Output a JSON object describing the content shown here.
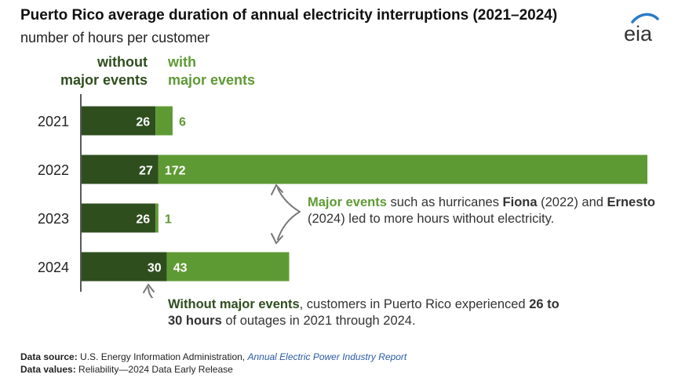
{
  "title": "Puerto Rico average duration of annual electricity interruptions (2021–2024)",
  "subtitle": "number of hours per customer",
  "logo_text": "eia",
  "legend": {
    "without_line1": "without",
    "without_line2": "major events",
    "with_line1": "with",
    "with_line2": "major events"
  },
  "colors": {
    "without": "#2f4e1e",
    "with": "#5e9a34",
    "axis": "#222222"
  },
  "chart_data": {
    "type": "bar",
    "orientation": "horizontal",
    "stacked": true,
    "categories": [
      "2021",
      "2022",
      "2023",
      "2024"
    ],
    "series": [
      {
        "name": "without major events",
        "values": [
          26,
          27,
          26,
          30
        ]
      },
      {
        "name": "with major events",
        "values": [
          6,
          172,
          1,
          43
        ]
      }
    ],
    "title": "Puerto Rico average duration of annual electricity interruptions (2021–2024)",
    "ylabel": "number of hours per customer",
    "xlim": [
      0,
      199
    ],
    "grid": false,
    "legend": "top"
  },
  "annotations": {
    "major": {
      "p1": "Major events",
      "p2": " such as hurricanes ",
      "p3": "Fiona",
      "p4": " (2022) and ",
      "p5": "Ernesto",
      "p6": " (2024) led to more hours without electricity."
    },
    "without": {
      "p1": "Without major events",
      "p2": ", customers in Puerto Rico experienced ",
      "p3": "26 to 30 hours",
      "p4": " of outages in 2021 through 2024."
    }
  },
  "footer": {
    "source_label": "Data source:",
    "source_text": " U.S. Energy Information Administration, ",
    "source_report": "Annual Electric Power Industry Report",
    "values_label": "Data values:",
    "values_text": " Reliability—2024 Data Early Release"
  }
}
